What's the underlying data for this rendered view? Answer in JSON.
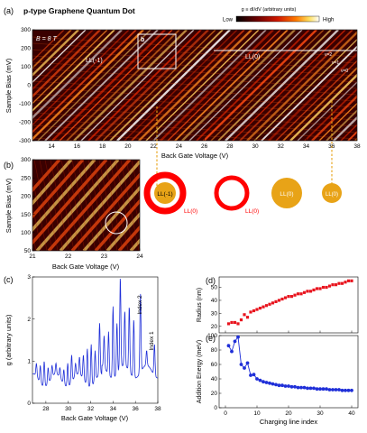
{
  "figure": {
    "title": "p-type Graphene Quantum Dot",
    "panel_labels": {
      "a": "(a)",
      "b": "(b)",
      "c": "(c)",
      "d": "(d)",
      "e": "(e)"
    },
    "colorbar": {
      "low": "Low",
      "high": "High",
      "label": "g ≡ dI/dV (arbitrary units)",
      "colors": [
        "#000000",
        "#6b0000",
        "#d01800",
        "#ff7a00",
        "#ffe060",
        "#ffffff"
      ]
    },
    "panel_a": {
      "field_label": "B = 8 T",
      "inset_label": "b",
      "ll_labels": {
        "ll_minus1": "LL(-1)",
        "ll0": "LL(0)",
        "nu2": "ν=2",
        "nu1": "ν=1",
        "nu0": "ν=0"
      }
    },
    "panel_b_schematic": {
      "label_ll_minus1": "LL(-1)",
      "label_ll0_a": "LL(0)",
      "label_ll0_b": "LL(0)",
      "label_ll0_c": "LL(0)",
      "ring_color": "#ff0000",
      "dot_color": "#e8a317"
    },
    "panel_c": {
      "index2": "Index 2",
      "index1": "Index 1"
    }
  },
  "chart_data": [
    {
      "type": "heatmap",
      "id": "a",
      "xlabel": "Back Gate Voltage (V)",
      "ylabel": "Sample Bias (mV)",
      "xlim": [
        12.5,
        38
      ],
      "ylim": [
        -300,
        300
      ],
      "xticks": [
        "14",
        "16",
        "18",
        "20",
        "22",
        "24",
        "26",
        "28",
        "30",
        "32",
        "34",
        "36",
        "38"
      ],
      "yticks": [
        "300",
        "200",
        "100",
        "0",
        "-100",
        "-200",
        "-300"
      ]
    },
    {
      "type": "heatmap",
      "id": "b",
      "xlabel": "Back Gate Voltage (V)",
      "ylabel": "Sample Bias (mV)",
      "xlim": [
        21,
        24
      ],
      "ylim": [
        50,
        300
      ],
      "xticks": [
        "21",
        "22",
        "23",
        "24"
      ],
      "yticks": [
        "300",
        "250",
        "200",
        "150",
        "100",
        "50"
      ]
    },
    {
      "type": "line",
      "id": "c",
      "xlabel": "Back Gate Voltage (V)",
      "ylabel": "g (arbitrary units)",
      "xlim": [
        26.8,
        38
      ],
      "ylim": [
        0,
        3
      ],
      "xticks": [
        "28",
        "30",
        "32",
        "34",
        "36",
        "38"
      ],
      "yticks": [
        "0",
        "1",
        "2",
        "3"
      ],
      "color": "#1f2fd8",
      "peaks": [
        {
          "x": 27.15,
          "y": 0.95
        },
        {
          "x": 27.5,
          "y": 0.9
        },
        {
          "x": 27.85,
          "y": 1.0
        },
        {
          "x": 28.2,
          "y": 0.85
        },
        {
          "x": 28.55,
          "y": 0.9
        },
        {
          "x": 28.9,
          "y": 0.95
        },
        {
          "x": 29.25,
          "y": 0.85
        },
        {
          "x": 29.6,
          "y": 0.8
        },
        {
          "x": 29.95,
          "y": 0.95
        },
        {
          "x": 30.3,
          "y": 1.15
        },
        {
          "x": 30.65,
          "y": 0.95
        },
        {
          "x": 31.0,
          "y": 1.1
        },
        {
          "x": 31.35,
          "y": 1.15
        },
        {
          "x": 31.7,
          "y": 1.3
        },
        {
          "x": 32.05,
          "y": 1.4
        },
        {
          "x": 32.4,
          "y": 1.25
        },
        {
          "x": 32.8,
          "y": 1.9
        },
        {
          "x": 33.2,
          "y": 1.6
        },
        {
          "x": 33.6,
          "y": 1.7
        },
        {
          "x": 34.0,
          "y": 2.3
        },
        {
          "x": 34.35,
          "y": 1.9
        },
        {
          "x": 34.65,
          "y": 3.0
        },
        {
          "x": 35.05,
          "y": 2.2
        },
        {
          "x": 35.45,
          "y": 2.3
        },
        {
          "x": 35.85,
          "y": 2.0
        },
        {
          "x": 36.45,
          "y": 2.6
        },
        {
          "x": 37.0,
          "y": 1.25
        },
        {
          "x": 37.7,
          "y": 1.4
        }
      ]
    },
    {
      "type": "scatter",
      "id": "d",
      "xlabel": "",
      "ylabel": "Radius (nm)",
      "xlim": [
        -2,
        42
      ],
      "ylim": [
        15,
        58
      ],
      "xticks": [
        "0",
        "10",
        "20",
        "30",
        "40"
      ],
      "yticks": [
        "20",
        "30",
        "40",
        "50"
      ],
      "color": "#e8141e",
      "x": [
        1,
        2,
        3,
        4,
        5,
        6,
        7,
        8,
        9,
        10,
        11,
        12,
        13,
        14,
        15,
        16,
        17,
        18,
        19,
        20,
        21,
        22,
        23,
        24,
        25,
        26,
        27,
        28,
        29,
        30,
        31,
        32,
        33,
        34,
        35,
        36,
        37,
        38,
        39,
        40
      ],
      "y": [
        22,
        23,
        23,
        22,
        25,
        29,
        27,
        31,
        32,
        33,
        34,
        35,
        36,
        37,
        38,
        39,
        40,
        41,
        42,
        43,
        43,
        44,
        45,
        45,
        46,
        47,
        47,
        48,
        49,
        49,
        50,
        50,
        51,
        52,
        52,
        53,
        53,
        54,
        55,
        55
      ]
    },
    {
      "type": "line",
      "id": "e",
      "xlabel": "Charging line index",
      "ylabel": "Addition Energy (meV)",
      "xlim": [
        -2,
        42
      ],
      "ylim": [
        0,
        100
      ],
      "xticks": [
        "0",
        "10",
        "20",
        "30",
        "40"
      ],
      "yticks": [
        "0",
        "20",
        "40",
        "60",
        "80",
        "100"
      ],
      "color": "#1f2fd8",
      "x": [
        1,
        2,
        3,
        4,
        5,
        6,
        7,
        8,
        9,
        10,
        11,
        12,
        13,
        14,
        15,
        16,
        17,
        18,
        19,
        20,
        21,
        22,
        23,
        24,
        25,
        26,
        27,
        28,
        29,
        30,
        31,
        32,
        33,
        34,
        35,
        36,
        37,
        38,
        39,
        40
      ],
      "y": [
        86,
        78,
        92,
        98,
        60,
        55,
        62,
        45,
        46,
        40,
        38,
        36,
        35,
        34,
        33,
        32,
        31,
        31,
        30,
        30,
        29,
        29,
        28,
        28,
        28,
        27,
        27,
        27,
        26,
        26,
        26,
        26,
        25,
        25,
        25,
        25,
        24,
        24,
        24,
        24
      ]
    }
  ]
}
